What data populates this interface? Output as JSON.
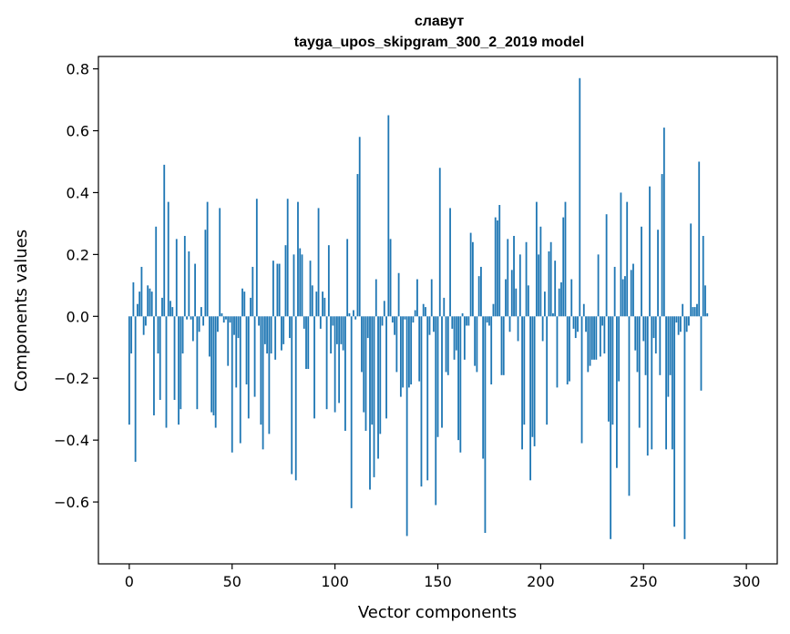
{
  "chart_data": {
    "type": "bar",
    "title_line1": "славут",
    "title_line2": "tayga_upos_skipgram_300_2_2019 model",
    "xlabel": "Vector components",
    "ylabel": "Components values",
    "xlim": [
      -15,
      315
    ],
    "ylim": [
      -0.8,
      0.84
    ],
    "x_ticks": [
      0,
      50,
      100,
      150,
      200,
      250,
      300
    ],
    "y_ticks": [
      -0.6,
      -0.4,
      -0.2,
      0.0,
      0.2,
      0.4,
      0.6,
      0.8
    ],
    "y_tick_labels": [
      "−0.6",
      "−0.4",
      "−0.2",
      "0.0",
      "0.2",
      "0.4",
      "0.6",
      "0.8"
    ],
    "bar_color": "#1f77b4",
    "values": [
      -0.35,
      -0.12,
      0.11,
      -0.47,
      0.04,
      0.08,
      0.16,
      -0.06,
      -0.03,
      0.1,
      0.09,
      0.08,
      -0.32,
      0.29,
      -0.12,
      -0.27,
      0.06,
      0.49,
      -0.36,
      0.37,
      0.05,
      0.03,
      -0.27,
      0.25,
      -0.35,
      -0.3,
      -0.12,
      0.26,
      -0.01,
      0.21,
      -0.01,
      -0.08,
      0.17,
      -0.3,
      -0.05,
      0.03,
      -0.03,
      0.28,
      0.37,
      -0.13,
      -0.31,
      -0.32,
      -0.36,
      -0.05,
      0.35,
      0.01,
      -0.02,
      -0.01,
      -0.16,
      -0.02,
      -0.44,
      -0.06,
      -0.23,
      -0.07,
      -0.41,
      0.09,
      0.08,
      -0.22,
      -0.33,
      0.06,
      0.16,
      -0.26,
      0.38,
      -0.03,
      -0.35,
      -0.43,
      -0.09,
      -0.12,
      -0.38,
      -0.12,
      0.18,
      -0.14,
      0.17,
      0.17,
      -0.11,
      -0.09,
      0.23,
      0.38,
      -0.07,
      -0.51,
      0.2,
      -0.53,
      0.37,
      0.22,
      0.2,
      -0.04,
      -0.17,
      -0.17,
      0.18,
      0.1,
      -0.33,
      0.08,
      0.35,
      -0.04,
      0.08,
      0.06,
      -0.3,
      0.23,
      -0.12,
      -0.03,
      -0.31,
      -0.09,
      -0.28,
      -0.09,
      -0.11,
      -0.37,
      0.25,
      0.01,
      -0.62,
      0.02,
      -0.01,
      0.46,
      0.58,
      -0.18,
      -0.31,
      -0.37,
      -0.07,
      -0.56,
      -0.35,
      -0.52,
      0.12,
      -0.46,
      -0.38,
      -0.03,
      0.05,
      -0.33,
      0.65,
      0.25,
      -0.02,
      -0.06,
      -0.18,
      0.14,
      -0.26,
      -0.23,
      -0.01,
      -0.71,
      -0.23,
      -0.22,
      -0.02,
      0.02,
      0.12,
      -0.21,
      -0.55,
      0.04,
      0.03,
      -0.53,
      -0.06,
      0.12,
      -0.05,
      -0.61,
      -0.39,
      0.48,
      -0.36,
      0.06,
      -0.18,
      -0.19,
      0.35,
      -0.04,
      -0.14,
      -0.11,
      -0.4,
      -0.44,
      0.01,
      -0.14,
      -0.03,
      -0.03,
      0.27,
      0.24,
      -0.16,
      -0.18,
      0.13,
      0.16,
      -0.46,
      -0.7,
      -0.02,
      -0.03,
      -0.22,
      0.04,
      0.32,
      0.31,
      0.36,
      -0.19,
      -0.19,
      0.12,
      0.25,
      -0.05,
      0.15,
      0.26,
      0.09,
      -0.08,
      0.2,
      -0.43,
      -0.35,
      0.24,
      0.1,
      -0.53,
      -0.39,
      -0.42,
      0.37,
      0.2,
      0.29,
      -0.08,
      0.08,
      -0.35,
      0.21,
      0.24,
      0.01,
      0.18,
      -0.23,
      0.09,
      0.11,
      0.32,
      0.37,
      -0.22,
      -0.21,
      0.12,
      -0.04,
      -0.07,
      -0.05,
      0.77,
      -0.41,
      0.04,
      -0.05,
      -0.18,
      -0.16,
      -0.14,
      -0.14,
      -0.14,
      0.2,
      -0.13,
      -0.03,
      -0.12,
      0.33,
      -0.34,
      -0.72,
      -0.35,
      0.16,
      -0.49,
      -0.21,
      0.4,
      0.12,
      0.13,
      0.37,
      -0.58,
      0.15,
      0.17,
      -0.11,
      -0.18,
      -0.36,
      0.29,
      -0.08,
      -0.19,
      -0.45,
      0.42,
      -0.43,
      -0.07,
      -0.12,
      0.28,
      -0.19,
      0.46,
      0.61,
      -0.43,
      -0.26,
      -0.19,
      -0.43,
      -0.68,
      -0.02,
      -0.06,
      -0.05,
      0.04,
      -0.72,
      -0.05,
      -0.03,
      0.3,
      0.03,
      0.03,
      0.04,
      0.5,
      -0.24,
      0.26,
      0.1,
      0.01
    ]
  }
}
